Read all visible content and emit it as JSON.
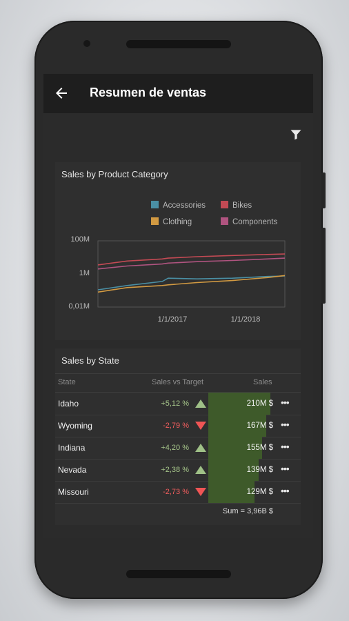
{
  "app": {
    "title": "Resumen de ventas"
  },
  "icons": {
    "back": "arrow-back-icon",
    "filter": "filter-icon",
    "more": "more-horizontal-icon"
  },
  "chart_card": {
    "title": "Sales by Product Category",
    "chart_data": {
      "type": "line",
      "title": "Sales by Product Category",
      "y_ticks": [
        "100M",
        "1M",
        "0,01M"
      ],
      "x_ticks": [
        "1/1/2017",
        "1/1/2018"
      ],
      "y_scale": "log",
      "ylim": [
        0.01,
        100
      ],
      "series": [
        {
          "name": "Accessories",
          "color": "#4a8fa4",
          "x": [
            "2016-01",
            "2016-06",
            "2016-12",
            "2017-01",
            "2017-06",
            "2017-12",
            "2018-06",
            "2018-09"
          ],
          "values": [
            0.11,
            0.2,
            0.35,
            0.55,
            0.5,
            0.55,
            0.7,
            0.75
          ]
        },
        {
          "name": "Bikes",
          "color": "#c44a54",
          "x": [
            "2016-01",
            "2016-06",
            "2016-12",
            "2017-01",
            "2017-06",
            "2017-12",
            "2018-06",
            "2018-09"
          ],
          "values": [
            3.5,
            6,
            8,
            9,
            11,
            13,
            15,
            16
          ]
        },
        {
          "name": "Clothing",
          "color": "#d29a42",
          "x": [
            "2016-01",
            "2016-06",
            "2016-12",
            "2017-01",
            "2017-06",
            "2017-12",
            "2018-06",
            "2018-09"
          ],
          "values": [
            0.08,
            0.15,
            0.2,
            0.22,
            0.3,
            0.4,
            0.6,
            0.8
          ]
        },
        {
          "name": "Components",
          "color": "#b05480",
          "x": [
            "2016-01",
            "2016-06",
            "2016-12",
            "2017-01",
            "2017-06",
            "2017-12",
            "2018-06",
            "2018-09"
          ],
          "values": [
            2,
            3,
            4,
            4.5,
            5.5,
            6.5,
            8,
            9
          ]
        }
      ],
      "grid": false,
      "legend": "top-right"
    }
  },
  "table_card": {
    "title": "Sales by State",
    "headers": {
      "state": "State",
      "target": "Sales vs Target",
      "sales": "Sales"
    },
    "rows": [
      {
        "state": "Idaho",
        "delta": "+5,12 %",
        "trend": "up",
        "sales": "210M $",
        "fraction": 0.92
      },
      {
        "state": "Wyoming",
        "delta": "-2,79 %",
        "trend": "down",
        "sales": "167M $",
        "fraction": 0.86
      },
      {
        "state": "Indiana",
        "delta": "+4,20 %",
        "trend": "up",
        "sales": "155M $",
        "fraction": 0.8
      },
      {
        "state": "Nevada",
        "delta": "+2,38 %",
        "trend": "up",
        "sales": "139M $",
        "fraction": 0.74
      },
      {
        "state": "Missouri",
        "delta": "-2,73 %",
        "trend": "down",
        "sales": "129M $",
        "fraction": 0.68
      }
    ],
    "sum": "Sum = 3,96B $"
  }
}
